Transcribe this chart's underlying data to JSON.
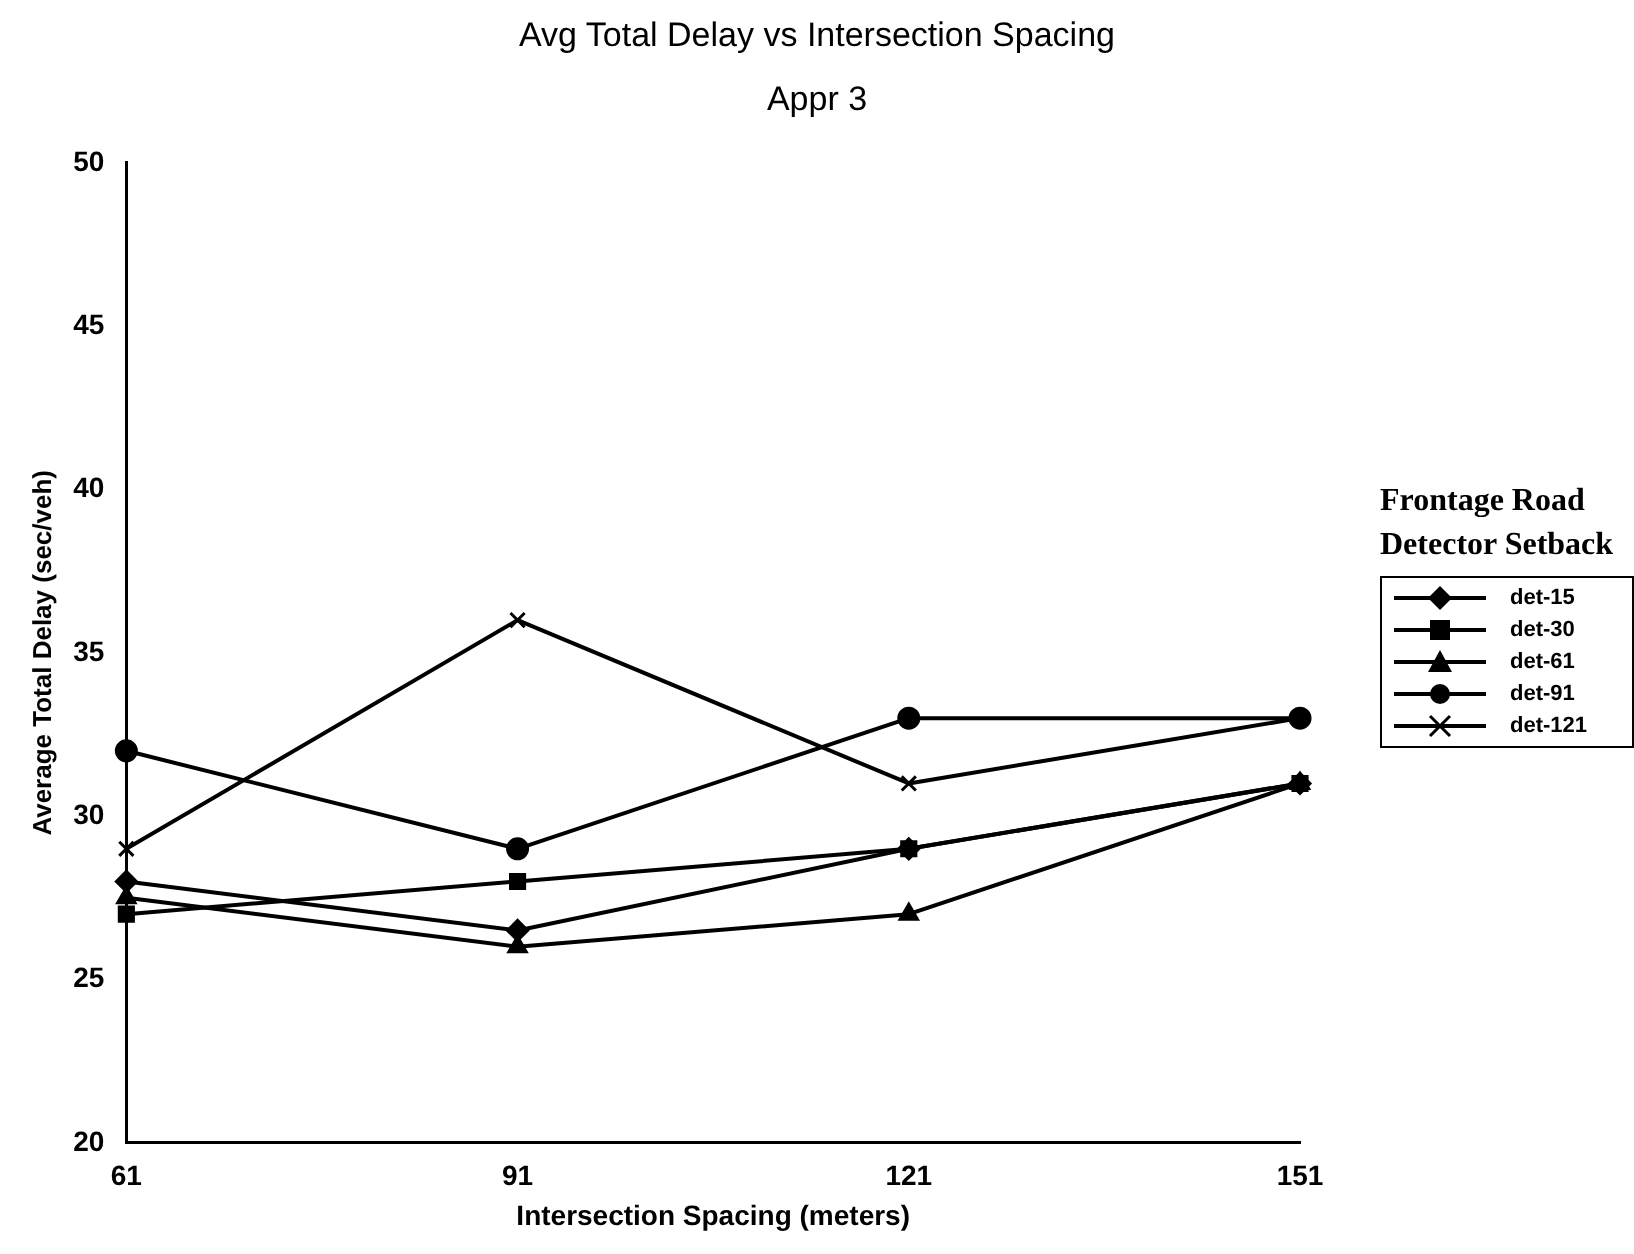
{
  "chart_data": {
    "type": "line",
    "title": "Avg Total Delay vs Intersection Spacing",
    "subtitle": "Appr 3",
    "xlabel": "Intersection Spacing (meters)",
    "ylabel": "Average Total Delay (sec/veh)",
    "legend_title": "Frontage Road Detector Setback",
    "categories": [
      "61",
      "91",
      "121",
      "151"
    ],
    "ylim": [
      20,
      50
    ],
    "yticks": [
      20,
      25,
      30,
      35,
      40,
      45,
      50
    ],
    "grid": false,
    "legend": "right",
    "line_style": "solid",
    "series": [
      {
        "name": "det-15",
        "color": "#000000",
        "marker": "diamond",
        "values": [
          28,
          26.5,
          29,
          31
        ]
      },
      {
        "name": "det-30",
        "color": "#000000",
        "marker": "square",
        "values": [
          27,
          28,
          29,
          31
        ]
      },
      {
        "name": "det-61",
        "color": "#000000",
        "marker": "triangle",
        "values": [
          27.5,
          26,
          27,
          31
        ]
      },
      {
        "name": "det-91",
        "color": "#000000",
        "marker": "circle",
        "values": [
          32,
          29,
          33,
          33
        ]
      },
      {
        "name": "det-121",
        "color": "#000000",
        "marker": "cross",
        "values": [
          29,
          36,
          31,
          33
        ]
      }
    ]
  }
}
